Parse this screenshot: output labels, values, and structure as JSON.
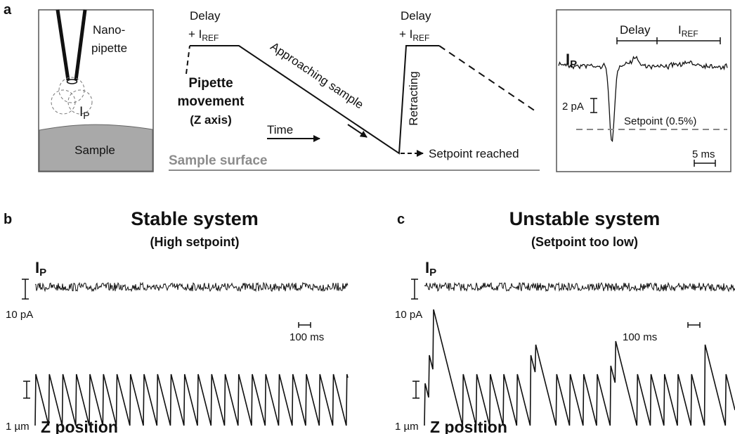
{
  "panel_a": {
    "label": "a",
    "pipette_label": [
      "Nano-",
      "pipette"
    ],
    "current": {
      "main": "I",
      "sub": "P"
    },
    "sample": "Sample",
    "delay_first": {
      "line1": "Delay",
      "prefix": "+ I",
      "sub": "REF"
    },
    "delay_second": {
      "line1": "Delay",
      "prefix": "+ I",
      "sub": "REF"
    },
    "movement": [
      "Pipette",
      "movement",
      "(Z axis)"
    ],
    "approaching": "Approaching sample",
    "retracting": "Retracting",
    "time": "Time",
    "setpoint_reached": "Setpoint reached",
    "sample_surface": "Sample surface",
    "inset": {
      "current": {
        "main": "I",
        "sub": "P"
      },
      "delay": "Delay",
      "iref": {
        "main": "I",
        "sub": "REF"
      },
      "scale_current": "2 pA",
      "setpoint": "Setpoint (0.5%)",
      "scale_time": "5 ms"
    }
  },
  "panel_b": {
    "label": "b",
    "title": "Stable system",
    "subtitle": "(High setpoint)",
    "current": {
      "main": "I",
      "sub": "P"
    },
    "scale_current": "10 pA",
    "scale_time": "100 ms",
    "scale_z": "1 µm",
    "z_label": "Z position"
  },
  "panel_c": {
    "label": "c",
    "title": "Unstable system",
    "subtitle": "(Setpoint too low)",
    "current": {
      "main": "I",
      "sub": "P"
    },
    "scale_current": "10 pA",
    "scale_time": "100 ms",
    "scale_z": "1 µm",
    "z_label": "Z position"
  }
}
